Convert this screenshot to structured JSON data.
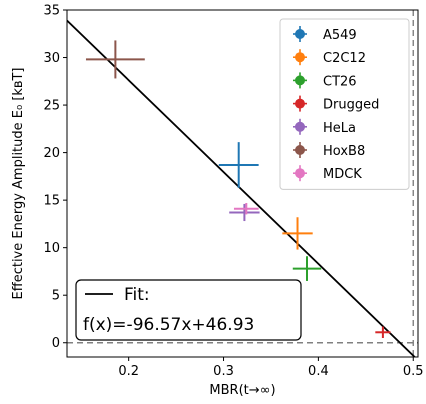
{
  "chart_data": {
    "type": "scatter",
    "title": "",
    "xlabel": "MBR(t→∞)",
    "ylabel": "Effective Energy Amplitude E₀ [kʙT]",
    "xlim": [
      0.135,
      0.505
    ],
    "ylim": [
      -1.5,
      35
    ],
    "xticks": [
      0.2,
      0.3,
      0.4,
      0.5
    ],
    "xtick_labels": [
      "0.2",
      "0.3",
      "0.4",
      "0.5"
    ],
    "yticks": [
      0,
      5,
      10,
      15,
      20,
      25,
      30,
      35
    ],
    "ytick_labels": [
      "0",
      "5",
      "10",
      "15",
      "20",
      "25",
      "30",
      "35"
    ],
    "grid": false,
    "legend_position": "top-right",
    "series": [
      {
        "name": "A549",
        "color": "#1f77b4",
        "x": 0.316,
        "y": 18.7,
        "xerr": 0.021,
        "yerr": 2.4
      },
      {
        "name": "C2C12",
        "color": "#ff7f0e",
        "x": 0.378,
        "y": 11.5,
        "xerr": 0.016,
        "yerr": 1.7
      },
      {
        "name": "CT26",
        "color": "#2ca02c",
        "x": 0.388,
        "y": 7.8,
        "xerr": 0.015,
        "yerr": 1.3
      },
      {
        "name": "Drugged",
        "color": "#d62728",
        "x": 0.468,
        "y": 1.1,
        "xerr": 0.008,
        "yerr": 0.6
      },
      {
        "name": "HeLa",
        "color": "#9467bd",
        "x": 0.322,
        "y": 13.7,
        "xerr": 0.016,
        "yerr": 0.9
      },
      {
        "name": "HoxB8",
        "color": "#8c564b",
        "x": 0.186,
        "y": 29.8,
        "xerr": 0.031,
        "yerr": 2.0
      },
      {
        "name": "MDCK",
        "color": "#e377c2",
        "x": 0.324,
        "y": 14.1,
        "xerr": 0.013,
        "yerr": 0.6
      }
    ],
    "fit": {
      "slope": -96.57,
      "intercept": 46.93,
      "legend_label": "Fit:",
      "equation": "f(x)=-96.57x+46.93",
      "color": "#000000"
    },
    "reference_lines": [
      {
        "orientation": "horizontal",
        "value": 0,
        "style": "dashed",
        "color": "#808080"
      },
      {
        "orientation": "vertical",
        "value": 0.5,
        "style": "dashed",
        "color": "#808080"
      }
    ]
  }
}
